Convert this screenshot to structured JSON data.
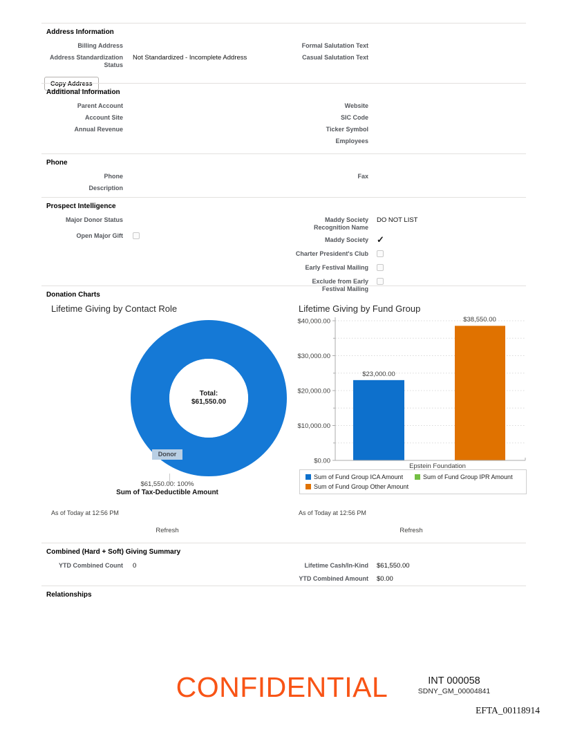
{
  "sections": {
    "address": {
      "title": "Address Information",
      "left": [
        {
          "label": "Billing Address",
          "value": ""
        },
        {
          "label": "Address Standardization Status",
          "value": "Not Standardized - Incomplete Address"
        }
      ],
      "right": [
        {
          "label": "Formal Salutation Text",
          "value": ""
        },
        {
          "label": "Casual Salutation Text",
          "value": ""
        }
      ],
      "copy_button": "Copy Address"
    },
    "additional": {
      "title": "Additional Information",
      "left": [
        {
          "label": "Parent Account",
          "value": ""
        },
        {
          "label": "Account Site",
          "value": ""
        },
        {
          "label": "Annual Revenue",
          "value": ""
        }
      ],
      "right": [
        {
          "label": "Website",
          "value": ""
        },
        {
          "label": "SIC Code",
          "value": ""
        },
        {
          "label": "Ticker Symbol",
          "value": ""
        },
        {
          "label": "Employees",
          "value": ""
        }
      ]
    },
    "phone": {
      "title": "Phone",
      "left": [
        {
          "label": "Phone",
          "value": ""
        },
        {
          "label": "Description",
          "value": ""
        }
      ],
      "right": [
        {
          "label": "Fax",
          "value": ""
        }
      ]
    },
    "prospect": {
      "title": "Prospect Intelligence",
      "left": [
        {
          "label": "Major Donor Status",
          "value": ""
        },
        {
          "label": "Open Major Gift",
          "checked": false
        }
      ],
      "right": [
        {
          "label": "Maddy Society Recognition Name",
          "value": "DO NOT LIST"
        },
        {
          "label": "Maddy Society",
          "checked": true
        },
        {
          "label": "Charter President's Club",
          "checked": false
        },
        {
          "label": "Early Festival Mailing",
          "checked": false
        },
        {
          "label": "Exclude from Early Festival Mailing",
          "checked": false
        }
      ]
    },
    "donation": {
      "title": "Donation Charts"
    },
    "combined": {
      "title": "Combined (Hard + Soft) Giving Summary",
      "left": [
        {
          "label": "YTD Combined Count",
          "value": "0"
        }
      ],
      "right": [
        {
          "label": "Lifetime Cash/In-Kind",
          "value": "$61,550.00"
        },
        {
          "label": "YTD Combined Amount",
          "value": "$0.00"
        }
      ]
    },
    "relationships": {
      "title": "Relationships"
    }
  },
  "chart_data": [
    {
      "type": "pie",
      "title": "Lifetime Giving by Contact Role",
      "slices": [
        {
          "label": "Donor",
          "value": 61550.0,
          "percent": 100,
          "color": "#1579d6"
        }
      ],
      "donut": true,
      "center_label": "Total:",
      "center_value": "$61,550.00",
      "callout_value": "$61,550.00: 100%",
      "callout_label": "Sum of Tax-Deductible Amount",
      "as_of": "As of Today at 12:56 PM",
      "refresh_label": "Refresh"
    },
    {
      "type": "bar",
      "title": "Lifetime Giving by Fund Group",
      "categories": [
        "Epstein Foundation"
      ],
      "series": [
        {
          "name": "Sum of Fund Group ICA Amount",
          "color": "#0d70cc",
          "values": [
            23000
          ]
        },
        {
          "name": "Sum of Fund Group IPR Amount",
          "color": "#74bf44",
          "values": [
            0
          ]
        },
        {
          "name": "Sum of Fund Group Other Amount",
          "color": "#e07200",
          "values": [
            38550
          ]
        }
      ],
      "value_labels": [
        "$23,000.00",
        "$38,550.00"
      ],
      "ylim": [
        0,
        40000
      ],
      "yticks": [
        "$40,000.00",
        "$30,000.00",
        "$20,000.00",
        "$10,000.00",
        "$0.00"
      ],
      "grid": true,
      "legend_position": "bottom",
      "as_of": "As of Today at 12:56 PM",
      "refresh_label": "Refresh"
    }
  ],
  "footer": {
    "confidential": "CONFIDENTIAL",
    "int_number": "INT 000058",
    "bates1": "SDNY_GM_00004841",
    "bates2": "EFTA_00118914"
  }
}
